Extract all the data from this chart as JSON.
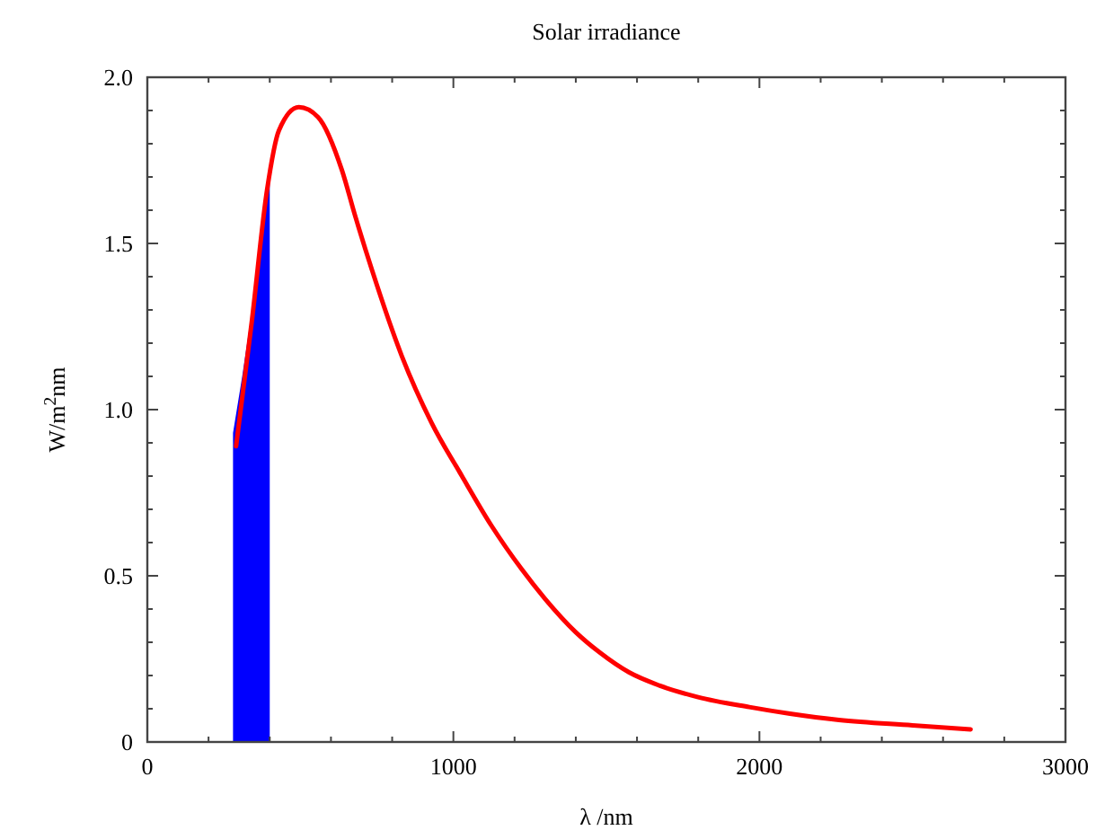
{
  "chart_data": {
    "type": "line",
    "title": "Solar irradiance",
    "xlabel": "λ /nm",
    "ylabel": "W/m$^{2}$nm",
    "xlim": [
      0,
      3000
    ],
    "ylim": [
      0,
      2
    ],
    "xticks": [
      0,
      {
        "value": 200,
        "label": null
      },
      {
        "value": 400,
        "label": null
      },
      {
        "value": 600,
        "label": null
      },
      {
        "value": 800,
        "label": null
      },
      1000,
      {
        "value": 1200,
        "label": null
      },
      {
        "value": 1400,
        "label": null
      },
      {
        "value": 1600,
        "label": null
      },
      {
        "value": 1800,
        "label": null
      },
      2000,
      {
        "value": 2200,
        "label": null
      },
      {
        "value": 2400,
        "label": null
      },
      {
        "value": 2600,
        "label": null
      },
      {
        "value": 2800,
        "label": null
      },
      3000
    ],
    "yticks": [
      0,
      {
        "value": 0.1,
        "label": null
      },
      {
        "value": 0.2,
        "label": null
      },
      {
        "value": 0.3,
        "label": null
      },
      {
        "value": 0.4,
        "label": null
      },
      {
        "value": 0.5,
        "label": "0.5"
      },
      {
        "value": 0.6,
        "label": null
      },
      {
        "value": 0.7,
        "label": null
      },
      {
        "value": 0.8,
        "label": null
      },
      {
        "value": 0.9,
        "label": null
      },
      {
        "value": 1,
        "label": "1.0"
      },
      {
        "value": 1.1,
        "label": null
      },
      {
        "value": 1.2,
        "label": null
      },
      {
        "value": 1.3,
        "label": null
      },
      {
        "value": 1.4,
        "label": null
      },
      {
        "value": 1.5,
        "label": "1.5"
      },
      {
        "value": 1.6,
        "label": null
      },
      {
        "value": 1.7,
        "label": null
      },
      {
        "value": 1.8,
        "label": null
      },
      {
        "value": 1.9,
        "label": null
      },
      {
        "value": 2,
        "label": "2.0"
      }
    ],
    "grid": false,
    "marker": "none",
    "line_style": "solid",
    "series": [
      {
        "type": "area",
        "color": "#0000ff",
        "x": [
          280,
          310,
          342,
          370,
          400
        ],
        "values": [
          0.93,
          1.1,
          1.3,
          1.5,
          1.71
        ]
      },
      {
        "color": "#ff0000",
        "x": [
          290,
          342,
          391,
          430,
          495,
          558,
          636,
          680,
          734,
          832,
          929,
          1028,
          1125,
          1223,
          1300,
          1400,
          1477,
          1573,
          1673,
          1800,
          1967,
          2100,
          2260,
          2500,
          2690
        ],
        "values": [
          0.89,
          1.27,
          1.66,
          1.84,
          1.91,
          1.88,
          1.72,
          1.58,
          1.42,
          1.16,
          0.96,
          0.8,
          0.65,
          0.52,
          0.43,
          0.33,
          0.27,
          0.21,
          0.17,
          0.135,
          0.105,
          0.085,
          0.066,
          0.05,
          0.038
        ]
      }
    ]
  }
}
